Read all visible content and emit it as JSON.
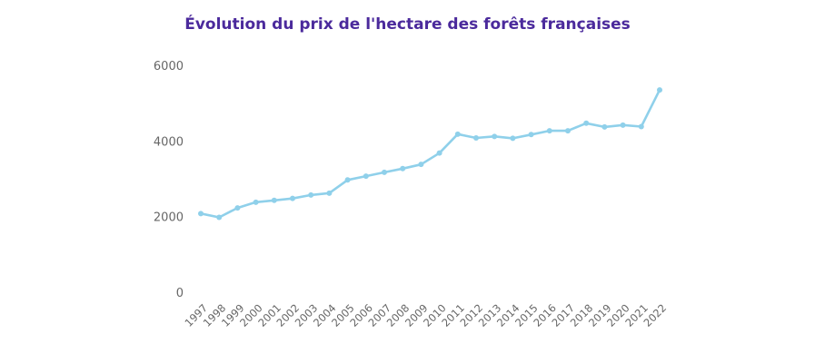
{
  "chart_data": {
    "type": "line",
    "title": "Évolution du prix de l'hectare des forêts françaises",
    "xlabel": "",
    "ylabel": "",
    "ylim": [
      0,
      6000
    ],
    "yticks": [
      "0",
      "2000",
      "4000",
      "6000"
    ],
    "categories": [
      "1997",
      "1998",
      "1999",
      "2000",
      "2001",
      "2002",
      "2003",
      "2004",
      "2005",
      "2006",
      "2007",
      "2008",
      "2009",
      "2010",
      "2011",
      "2012",
      "2013",
      "2014",
      "2015",
      "2016",
      "2017",
      "2018",
      "2019",
      "2020",
      "2021",
      "2022"
    ],
    "values": [
      2080,
      1980,
      2230,
      2380,
      2430,
      2480,
      2570,
      2620,
      2970,
      3070,
      3170,
      3270,
      3380,
      3680,
      4180,
      4080,
      4120,
      4070,
      4170,
      4270,
      4270,
      4470,
      4370,
      4420,
      4380,
      5350
    ],
    "grid": false,
    "legend": "none",
    "line_color": "#8fd0ea"
  }
}
